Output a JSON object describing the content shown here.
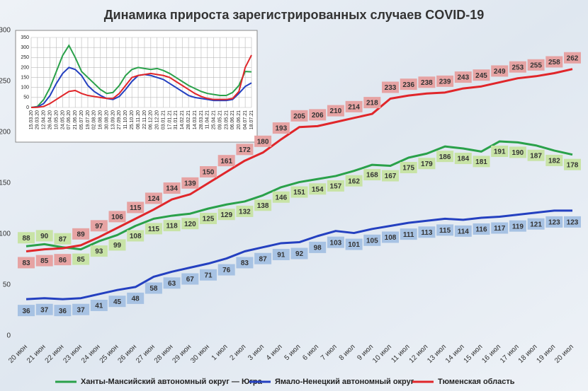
{
  "chart_data": [
    {
      "type": "line",
      "title": "Динамика прироста зарегистрированных случаев COVID-19",
      "categories": [
        "20 июн",
        "21 июн",
        "22 июн",
        "23 июн",
        "24 июн",
        "25 июн",
        "26 июн",
        "27 июн",
        "28 июн",
        "29 июн",
        "30 июн",
        "1 июл",
        "2 июл",
        "3 июл",
        "4 июл",
        "5 июл",
        "6 июл",
        "7 июл",
        "8 июл",
        "9 июл",
        "10 июл",
        "11 июл",
        "12 июл",
        "13 июл",
        "14 июл",
        "15 июл",
        "16 июл",
        "17 июл",
        "18 июл",
        "19 июл",
        "20 июл"
      ],
      "series": [
        {
          "name": "Ханты-Мансийский автономный округ — Югра",
          "color": "#2aa14a",
          "label_color": "#c8e3a6",
          "values": [
            88,
            90,
            87,
            85,
            93,
            99,
            108,
            115,
            118,
            120,
            125,
            129,
            132,
            138,
            146,
            151,
            154,
            157,
            162,
            168,
            167,
            175,
            179,
            186,
            184,
            181,
            191,
            190,
            187,
            182,
            178
          ]
        },
        {
          "name": "Ямало-Ненецкий автономный округ",
          "color": "#2440c0",
          "label_color": "#a7c2e3",
          "values": [
            36,
            37,
            36,
            37,
            41,
            45,
            48,
            58,
            63,
            67,
            71,
            76,
            83,
            87,
            91,
            92,
            98,
            103,
            101,
            105,
            108,
            111,
            113,
            115,
            114,
            116,
            117,
            119,
            121,
            123,
            123
          ]
        },
        {
          "name": "Тюменская область",
          "color": "#e0262a",
          "label_color": "#e6a3a3",
          "values": [
            83,
            85,
            86,
            89,
            97,
            106,
            115,
            124,
            134,
            139,
            150,
            161,
            172,
            180,
            193,
            205,
            206,
            210,
            214,
            218,
            233,
            236,
            238,
            239,
            243,
            245,
            249,
            253,
            255,
            258,
            262
          ]
        }
      ],
      "ylim": [
        0,
        300
      ],
      "yticks": [
        0,
        50,
        100,
        150,
        200,
        250,
        300
      ],
      "grid": false
    },
    {
      "type": "line",
      "categories": [
        "15.03.20",
        "29.03.20",
        "12.04.20",
        "26.04.20",
        "10.05.20",
        "24.05.20",
        "07.06.20",
        "21.06.20",
        "05.07.20",
        "19.07.20",
        "02.08.20",
        "16.08.20",
        "30.08.20",
        "13.09.20",
        "27.09.20",
        "11.10.20",
        "25.10.20",
        "08.11.20",
        "22.11.20",
        "06.12.20",
        "20.12.20",
        "03.01.21",
        "17.01.21",
        "31.01.21",
        "14.02.21",
        "28.02.21",
        "14.03.21",
        "28.03.21",
        "11.04.21",
        "25.04.21",
        "09.05.21",
        "23.05.21",
        "06.06.21",
        "20.06.21",
        "04.07.21",
        "18.07.21"
      ],
      "series": [
        {
          "name": "Ханты-Мансийский автономный округ — Югра",
          "color": "#2aa14a",
          "values": [
            0,
            5,
            40,
            100,
            180,
            260,
            310,
            250,
            180,
            150,
            120,
            90,
            70,
            75,
            110,
            160,
            190,
            200,
            195,
            190,
            195,
            185,
            170,
            150,
            130,
            110,
            95,
            80,
            70,
            65,
            60,
            60,
            75,
            110,
            180,
            178
          ]
        },
        {
          "name": "Ямало-Ненецкий автономный округ",
          "color": "#2440c0",
          "values": [
            0,
            2,
            20,
            60,
            120,
            170,
            200,
            190,
            160,
            110,
            80,
            60,
            45,
            40,
            55,
            90,
            130,
            160,
            165,
            160,
            150,
            140,
            120,
            100,
            80,
            60,
            50,
            45,
            40,
            35,
            35,
            35,
            40,
            70,
            105,
            123
          ]
        },
        {
          "name": "Тюменская область",
          "color": "#e0262a",
          "values": [
            0,
            1,
            5,
            20,
            40,
            60,
            80,
            85,
            70,
            60,
            55,
            50,
            45,
            45,
            70,
            110,
            150,
            160,
            165,
            170,
            165,
            160,
            150,
            130,
            110,
            90,
            70,
            55,
            45,
            40,
            40,
            40,
            45,
            80,
            200,
            262
          ]
        }
      ],
      "ylim": [
        0,
        350
      ],
      "yticks": [
        0,
        50,
        100,
        150,
        200,
        250,
        300,
        350
      ],
      "grid": true
    }
  ]
}
